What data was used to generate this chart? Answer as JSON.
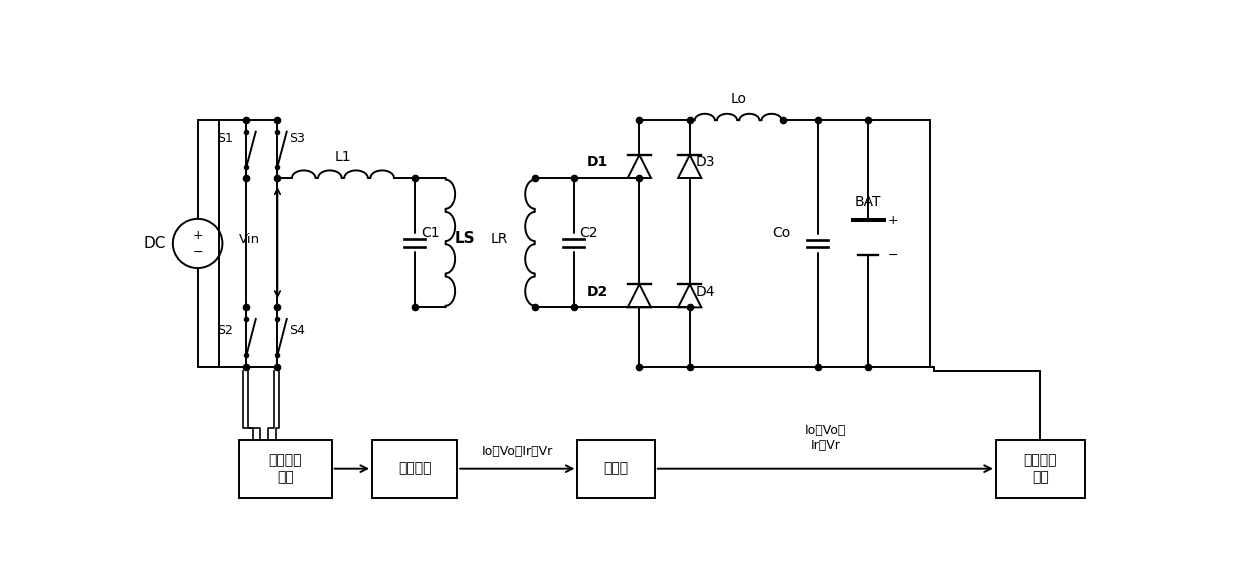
{
  "bg_color": "#ffffff",
  "lc": "#000000",
  "lw": 1.4,
  "fig_w": 12.4,
  "fig_h": 5.85,
  "labels": {
    "DC": "DC",
    "S1": "S1",
    "S2": "S2",
    "S3": "S3",
    "S4": "S4",
    "L1": "L1",
    "C1": "C1",
    "LS": "LS",
    "LR": "LR",
    "C2": "C2",
    "D1": "D1",
    "D2": "D2",
    "D3": "D3",
    "D4": "D4",
    "Lo": "Lo",
    "Co": "Co",
    "BAT": "BAT",
    "Vin": "Vin",
    "box1": "调制发波\n组件",
    "box2": "计算组件",
    "box3": "控制器",
    "box4": "电池管理\n组件",
    "al1": "Io、Vo、Ir、Vr",
    "al2": "Io、Vo、\nIr、Vr",
    "al3": "Io、Vo、\nIr、Vr"
  }
}
